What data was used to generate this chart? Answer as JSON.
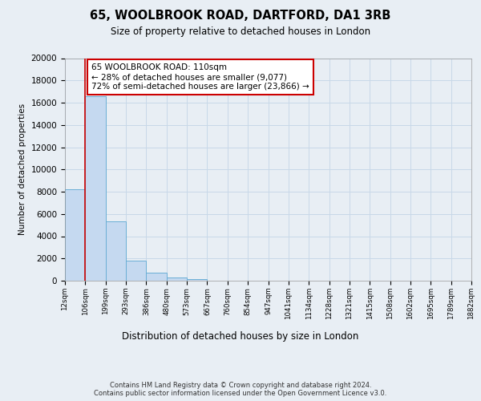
{
  "title1": "65, WOOLBROOK ROAD, DARTFORD, DA1 3RB",
  "title2": "Size of property relative to detached houses in London",
  "xlabel": "Distribution of detached houses by size in London",
  "ylabel": "Number of detached properties",
  "bar_values": [
    8200,
    16600,
    5300,
    1800,
    750,
    280,
    150,
    0,
    0,
    0,
    0,
    0,
    0,
    0,
    0,
    0,
    0,
    0,
    0,
    0
  ],
  "bin_labels": [
    "12sqm",
    "106sqm",
    "199sqm",
    "293sqm",
    "386sqm",
    "480sqm",
    "573sqm",
    "667sqm",
    "760sqm",
    "854sqm",
    "947sqm",
    "1041sqm",
    "1134sqm",
    "1228sqm",
    "1321sqm",
    "1415sqm",
    "1508sqm",
    "1602sqm",
    "1695sqm",
    "1789sqm",
    "1882sqm"
  ],
  "bar_color": "#c5d9f0",
  "bar_edge_color": "#6aaed6",
  "grid_color": "#c8d8e8",
  "vline_color": "#cc0000",
  "annotation_text": "65 WOOLBROOK ROAD: 110sqm\n← 28% of detached houses are smaller (9,077)\n72% of semi-detached houses are larger (23,866) →",
  "annotation_box_color": "#ffffff",
  "annotation_box_edge": "#cc0000",
  "ylim": [
    0,
    20000
  ],
  "yticks": [
    0,
    2000,
    4000,
    6000,
    8000,
    10000,
    12000,
    14000,
    16000,
    18000,
    20000
  ],
  "footer": "Contains HM Land Registry data © Crown copyright and database right 2024.\nContains public sector information licensed under the Open Government Licence v3.0.",
  "bg_color": "#e8eef4"
}
